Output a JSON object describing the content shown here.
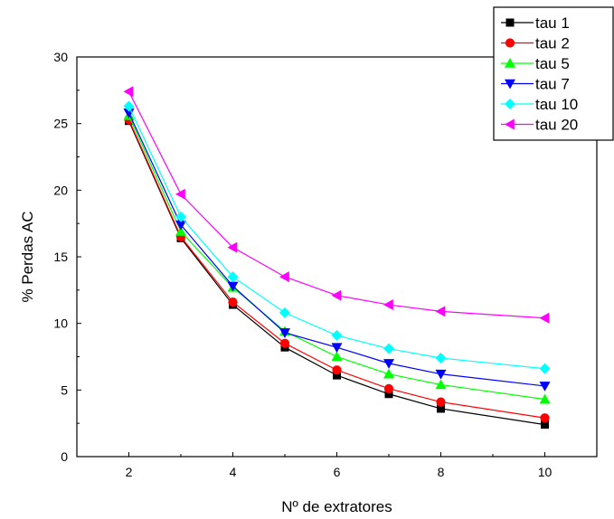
{
  "chart_data": {
    "type": "line",
    "title": "",
    "xlabel": "Nº de extratores",
    "ylabel": "% Perdas AC",
    "xlim": [
      1,
      11
    ],
    "ylim": [
      0,
      30
    ],
    "x_ticks": [
      2,
      4,
      6,
      8,
      10
    ],
    "y_ticks": [
      0,
      5,
      10,
      15,
      20,
      25,
      30
    ],
    "grid": false,
    "legend_position": "top-right",
    "x": [
      2,
      3,
      4,
      5,
      6,
      7,
      8,
      10
    ],
    "series": [
      {
        "name": "tau 1",
        "color": "#000000",
        "marker": "square",
        "values": [
          25.2,
          16.4,
          11.4,
          8.2,
          6.1,
          4.7,
          3.6,
          2.4
        ]
      },
      {
        "name": "tau 2",
        "color": "#ff0000",
        "marker": "circle",
        "values": [
          25.3,
          16.5,
          11.6,
          8.5,
          6.5,
          5.1,
          4.1,
          2.9
        ]
      },
      {
        "name": "tau 5",
        "color": "#00ff00",
        "marker": "triangle-up",
        "values": [
          25.6,
          16.9,
          12.7,
          9.4,
          7.5,
          6.2,
          5.4,
          4.3
        ]
      },
      {
        "name": "tau 7",
        "color": "#0000ff",
        "marker": "triangle-down",
        "values": [
          25.8,
          17.4,
          12.8,
          9.3,
          8.2,
          7.0,
          6.2,
          5.3
        ]
      },
      {
        "name": "tau 10",
        "color": "#00ffff",
        "marker": "diamond",
        "values": [
          26.3,
          18.0,
          13.5,
          10.8,
          9.1,
          8.1,
          7.4,
          6.6
        ]
      },
      {
        "name": "tau 20",
        "color": "#ff00ff",
        "marker": "triangle-left",
        "values": [
          27.4,
          19.7,
          15.7,
          13.5,
          12.1,
          11.4,
          10.9,
          10.4
        ]
      }
    ]
  }
}
